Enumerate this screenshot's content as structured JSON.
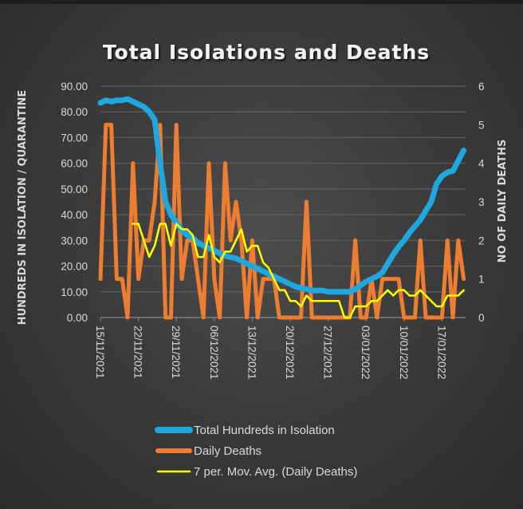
{
  "chart_data": {
    "type": "line",
    "title": "Total Isolations and Deaths",
    "ylabel": "HUNDREDS IN ISOLATION / QUARANTINE",
    "y2label": "NO OF DAILY DEATHS",
    "ylim": [
      0,
      90
    ],
    "y2lim": [
      0,
      6
    ],
    "yticks": [
      "0.00",
      "10.00",
      "20.00",
      "30.00",
      "40.00",
      "50.00",
      "60.00",
      "70.00",
      "80.00",
      "90.00"
    ],
    "y2ticks": [
      "0",
      "1",
      "2",
      "3",
      "4",
      "5",
      "6"
    ],
    "xticks": [
      "15/11/2021",
      "22/11/2021",
      "29/11/2021",
      "06/12/2021",
      "13/12/2021",
      "20/12/2021",
      "27/12/2021",
      "03/01/2022",
      "10/01/2022",
      "17/01/2022"
    ],
    "grid": true,
    "legend_placement": "bottom",
    "x": [
      "15/11/2021",
      "16/11/2021",
      "17/11/2021",
      "18/11/2021",
      "19/11/2021",
      "20/11/2021",
      "21/11/2021",
      "22/11/2021",
      "23/11/2021",
      "24/11/2021",
      "25/11/2021",
      "26/11/2021",
      "27/11/2021",
      "28/11/2021",
      "29/11/2021",
      "30/11/2021",
      "01/12/2021",
      "02/12/2021",
      "03/12/2021",
      "04/12/2021",
      "05/12/2021",
      "06/12/2021",
      "07/12/2021",
      "08/12/2021",
      "09/12/2021",
      "10/12/2021",
      "11/12/2021",
      "12/12/2021",
      "13/12/2021",
      "14/12/2021",
      "15/12/2021",
      "16/12/2021",
      "17/12/2021",
      "18/12/2021",
      "19/12/2021",
      "20/12/2021",
      "21/12/2021",
      "22/12/2021",
      "23/12/2021",
      "24/12/2021",
      "25/12/2021",
      "26/12/2021",
      "27/12/2021",
      "28/12/2021",
      "29/12/2021",
      "30/12/2021",
      "31/12/2021",
      "01/01/2022",
      "02/01/2022",
      "03/01/2022",
      "04/01/2022",
      "05/01/2022",
      "06/01/2022",
      "07/01/2022",
      "08/01/2022",
      "09/01/2022",
      "10/01/2022",
      "11/01/2022",
      "12/01/2022",
      "13/01/2022",
      "14/01/2022",
      "15/01/2022",
      "16/01/2022",
      "17/01/2022",
      "18/01/2022",
      "19/01/2022",
      "20/01/2022",
      "21/01/2022"
    ],
    "series": [
      {
        "name": "Total Hundreds in Isolation",
        "axis": "left",
        "color": "#1fa7e0",
        "values": [
          83.5,
          84.5,
          84,
          84.5,
          84.5,
          85,
          84,
          83,
          82,
          80,
          77,
          60,
          45,
          40,
          37,
          34,
          32,
          31,
          29,
          28,
          27,
          26,
          25,
          24,
          23.5,
          23,
          22,
          21,
          20,
          19,
          18,
          17,
          16,
          15,
          14,
          13,
          12,
          11.5,
          11,
          10.5,
          10.5,
          10.5,
          10,
          10,
          10,
          10,
          10,
          11,
          12.5,
          14,
          15,
          16,
          17.5,
          21,
          24.5,
          27.5,
          30,
          33,
          35.5,
          38,
          41.5,
          45,
          52,
          55,
          56.5,
          57,
          61,
          65
        ]
      },
      {
        "name": "Daily Deaths",
        "axis": "right",
        "color": "#ed7d31",
        "values": [
          1,
          5,
          5,
          1,
          1,
          0,
          4,
          1,
          2,
          2,
          3,
          5,
          0,
          0,
          5,
          1,
          2,
          2,
          1,
          0,
          4,
          1,
          0,
          4,
          2,
          3,
          2,
          0,
          2,
          0,
          1,
          1,
          1,
          0,
          0,
          0,
          0,
          0,
          3,
          0,
          0,
          0,
          0,
          0,
          0,
          0,
          0,
          2,
          0,
          0,
          1,
          0,
          1,
          1,
          1,
          1,
          0,
          0,
          0,
          2,
          0,
          0,
          0,
          0,
          2,
          0,
          2,
          1
        ]
      },
      {
        "name": "7 per. Mov. Avg. (Daily Deaths)",
        "axis": "right",
        "color": "#ffff00",
        "values": [
          null,
          null,
          null,
          null,
          null,
          null,
          2.43,
          2.43,
          2.0,
          1.57,
          1.86,
          2.43,
          2.43,
          1.86,
          2.43,
          2.29,
          2.29,
          2.14,
          1.57,
          1.57,
          2.14,
          1.57,
          1.43,
          1.71,
          1.71,
          2.0,
          2.29,
          1.71,
          1.86,
          1.86,
          1.43,
          1.29,
          1.0,
          0.71,
          0.71,
          0.43,
          0.43,
          0.29,
          0.57,
          0.43,
          0.43,
          0.43,
          0.43,
          0.43,
          0.43,
          0,
          0,
          0.29,
          0.29,
          0.29,
          0.43,
          0.43,
          0.57,
          0.71,
          0.57,
          0.71,
          0.71,
          0.57,
          0.57,
          0.71,
          0.57,
          0.43,
          0.29,
          0.29,
          0.57,
          0.57,
          0.57,
          0.71
        ]
      }
    ]
  }
}
